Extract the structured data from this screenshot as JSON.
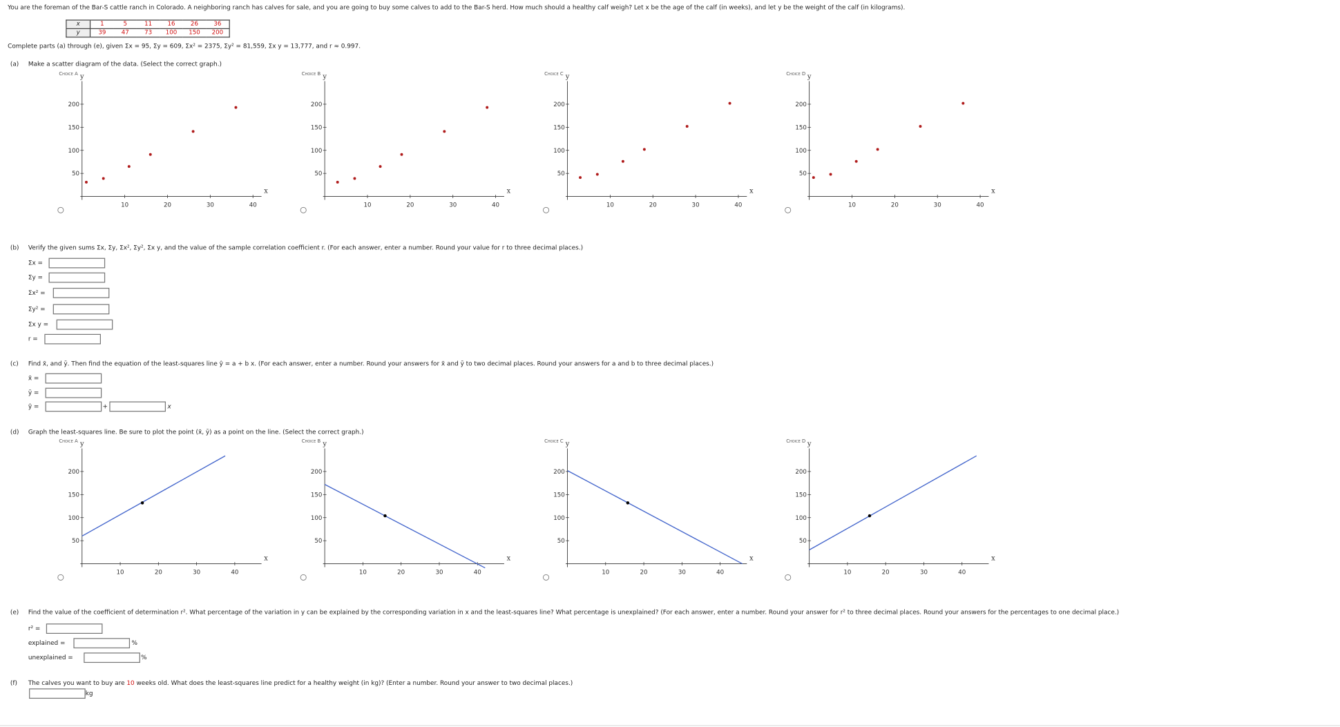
{
  "intro": "You are the foreman of the Bar-S cattle ranch in Colorado. A neighboring ranch has calves for sale, and you are going to buy some calves to add to the Bar-S herd. How much should a healthy calf weigh? Let x be the age of the calf (in weeks), and let y be the weight of the calf (in kilograms).",
  "data_table": {
    "x_label": "x",
    "y_label": "y",
    "x": [
      1,
      5,
      11,
      16,
      26,
      36
    ],
    "y": [
      39,
      47,
      73,
      100,
      150,
      200
    ]
  },
  "given": "Complete parts (a) through (e), given Σx = 95, Σy = 609, Σx² = 2375, Σy² = 81,559, Σx y = 13,777, and r ≈ 0.997.",
  "part_a": {
    "label": "(a)",
    "text": "Make a scatter diagram of the data. (Select the correct graph.)",
    "choices": [
      {
        "type": "scatter",
        "title": "Choice A",
        "xlabel": "x",
        "ylabel": "y",
        "x": [
          1,
          5,
          11,
          16,
          26,
          36
        ],
        "y": [
          31,
          39,
          65,
          91,
          141,
          193
        ],
        "xlim": [
          0,
          42
        ],
        "ylim": [
          0,
          250
        ],
        "xticks": [
          10,
          20,
          30,
          40
        ],
        "yticks": [
          50,
          100,
          150,
          200
        ],
        "color": "#b01c1c"
      },
      {
        "type": "scatter",
        "title": "Choice B",
        "xlabel": "x",
        "ylabel": "y",
        "x": [
          3,
          7,
          13,
          18,
          28,
          38
        ],
        "y": [
          31,
          39,
          65,
          91,
          141,
          193
        ],
        "xlim": [
          0,
          42
        ],
        "ylim": [
          0,
          250
        ],
        "xticks": [
          10,
          20,
          30,
          40
        ],
        "yticks": [
          50,
          100,
          150,
          200
        ],
        "color": "#b01c1c"
      },
      {
        "type": "scatter",
        "title": "Choice C",
        "xlabel": "x",
        "ylabel": "y",
        "x": [
          3,
          7,
          13,
          18,
          28,
          38
        ],
        "y": [
          41,
          48,
          76,
          102,
          152,
          202
        ],
        "xlim": [
          0,
          42
        ],
        "ylim": [
          0,
          250
        ],
        "xticks": [
          10,
          20,
          30,
          40
        ],
        "yticks": [
          50,
          100,
          150,
          200
        ],
        "color": "#b01c1c"
      },
      {
        "type": "scatter",
        "title": "Choice D",
        "xlabel": "x",
        "ylabel": "y",
        "x": [
          1,
          5,
          11,
          16,
          26,
          36
        ],
        "y": [
          41,
          48,
          76,
          102,
          152,
          202
        ],
        "xlim": [
          0,
          42
        ],
        "ylim": [
          0,
          250
        ],
        "xticks": [
          10,
          20,
          30,
          40
        ],
        "yticks": [
          50,
          100,
          150,
          200
        ],
        "color": "#b01c1c"
      }
    ]
  },
  "part_b": {
    "label": "(b)",
    "text": "Verify the given sums Σx, Σy, Σx², Σy², Σx y, and the value of the sample correlation coefficient r. (For each answer, enter a number. Round your value for r to three decimal places.)",
    "fields": [
      "Σx =",
      "Σy =",
      "Σx² =",
      "Σy² =",
      "Σx y =",
      "r ="
    ]
  },
  "part_c": {
    "label": "(c)",
    "text": "Find x̄, and ȳ. Then find the equation of the least-squares line ŷ = a + b x. (For each answer, enter a number. Round your answers for x̄ and ȳ to two decimal places. Round your answers for a and b to three decimal places.)",
    "fields": [
      "x̄ =",
      "ȳ ="
    ],
    "line_label": "ŷ =",
    "plus": "+",
    "x_suffix": "x"
  },
  "part_d": {
    "label": "(d)",
    "text": "Graph the least-squares line. Be sure to plot the point (x̄, ȳ) as a point on the line. (Select the correct graph.)",
    "choices": [
      {
        "type": "line",
        "title": "Choice A",
        "xlabel": "x",
        "ylabel": "y",
        "x": [
          0,
          37.5
        ],
        "y": [
          60,
          234
        ],
        "point_x": [
          15.8
        ],
        "point_y": [
          132
        ],
        "xlim": [
          0,
          47
        ],
        "ylim": [
          0,
          250
        ],
        "xticks": [
          10,
          20,
          30,
          40
        ],
        "yticks": [
          50,
          100,
          150,
          200
        ],
        "color": "#4466cc"
      },
      {
        "type": "line",
        "title": "Choice B",
        "xlabel": "x",
        "ylabel": "y",
        "x": [
          0,
          42
        ],
        "y": [
          172,
          -9
        ],
        "point_x": [
          15.8
        ],
        "point_y": [
          104
        ],
        "xlim": [
          0,
          47
        ],
        "ylim": [
          0,
          250
        ],
        "xticks": [
          10,
          20,
          30,
          40
        ],
        "yticks": [
          50,
          100,
          150,
          200
        ],
        "color": "#4466cc"
      },
      {
        "type": "line",
        "title": "Choice C",
        "xlabel": "x",
        "ylabel": "y",
        "x": [
          0,
          45.8
        ],
        "y": [
          202,
          0
        ],
        "point_x": [
          15.8
        ],
        "point_y": [
          132
        ],
        "xlim": [
          0,
          47
        ],
        "ylim": [
          0,
          250
        ],
        "xticks": [
          10,
          20,
          30,
          40
        ],
        "yticks": [
          50,
          100,
          150,
          200
        ],
        "color": "#4466cc"
      },
      {
        "type": "line",
        "title": "Choice D",
        "xlabel": "x",
        "ylabel": "y",
        "x": [
          0,
          43.8
        ],
        "y": [
          30,
          234
        ],
        "point_x": [
          15.8
        ],
        "point_y": [
          104
        ],
        "xlim": [
          0,
          47
        ],
        "ylim": [
          0,
          250
        ],
        "xticks": [
          10,
          20,
          30,
          40
        ],
        "yticks": [
          50,
          100,
          150,
          200
        ],
        "color": "#4466cc"
      }
    ]
  },
  "part_e": {
    "label": "(e)",
    "text": "Find the value of the coefficient of determination r². What percentage of the variation in y can be explained by the corresponding variation in x and the least-squares line? What percentage is unexplained? (For each answer, enter a number. Round your answer for r² to three decimal places. Round your answers for the percentages to one decimal place.)",
    "r2_label": "r² =",
    "explained": "explained =",
    "unexplained": "unexplained =",
    "percent": "%"
  },
  "part_f": {
    "label": "(f)",
    "text_before": "The calves you want to buy are ",
    "age": "10",
    "text_after": " weeks old. What does the least-squares line predict for a healthy weight (in kg)? (Enter a number. Round your answer to two decimal places.)",
    "unit": "kg"
  }
}
